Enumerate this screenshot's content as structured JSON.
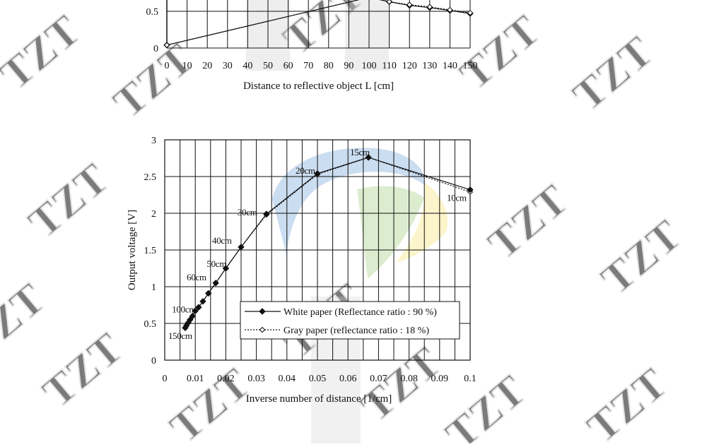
{
  "watermark": {
    "text": "TZT",
    "colors": {
      "blue": "#2f78c4",
      "green": "#74b83e",
      "yellow": "#f2d22a",
      "gray": "#cfcfcf"
    }
  },
  "chart_data": [
    {
      "type": "line",
      "partial": true,
      "xlabel": "Distance to reflective object L [cm]",
      "ylabel": "",
      "x_ticks": [
        "0",
        "10",
        "20",
        "30",
        "40",
        "50",
        "60",
        "70",
        "80",
        "90",
        "100",
        "110",
        "120",
        "130",
        "140",
        "150"
      ],
      "y_ticks": [
        "0",
        "0.5"
      ],
      "xlim": [
        0,
        150
      ],
      "grid": true,
      "series": [
        {
          "style": "solid-diamond",
          "x": [
            0,
            100,
            110,
            120,
            130,
            140,
            150
          ],
          "y": [
            0.04,
            0.69,
            0.63,
            0.58,
            0.55,
            0.51,
            0.47
          ]
        },
        {
          "style": "dotted-open-diamond",
          "x": [
            0,
            100,
            110,
            120,
            130,
            140,
            150
          ],
          "y": [
            0.04,
            0.69,
            0.63,
            0.59,
            0.56,
            0.52,
            0.48
          ]
        }
      ]
    },
    {
      "type": "line",
      "xlabel": "Inverse number of distance [1/cm]",
      "ylabel": "Output voltage [V]",
      "x_ticks": [
        "0",
        "0.01",
        "0.02",
        "0.03",
        "0.04",
        "0.05",
        "0.06",
        "0.07",
        "0.08",
        "0.09",
        "0.1"
      ],
      "y_ticks": [
        "0",
        "0.5",
        "1",
        "1.5",
        "2",
        "2.5",
        "3"
      ],
      "xlim": [
        0,
        0.1
      ],
      "ylim": [
        0,
        3
      ],
      "grid": true,
      "legend_position": "bottom-right",
      "series": [
        {
          "name": "White paper (Reflectance ratio : 90 %)",
          "style": "solid-diamond",
          "x": [
            0.1,
            0.0667,
            0.05,
            0.0333,
            0.025,
            0.02,
            0.0167,
            0.0143,
            0.0125,
            0.0111,
            0.01,
            0.0091,
            0.0083,
            0.0077,
            0.0071,
            0.0067
          ],
          "y": [
            2.32,
            2.76,
            2.54,
            1.99,
            1.54,
            1.25,
            1.05,
            0.91,
            0.8,
            0.72,
            0.67,
            0.6,
            0.55,
            0.51,
            0.47,
            0.44
          ]
        },
        {
          "name": "Gray paper (reflectance ratio : 18 %)",
          "style": "dotted-open-diamond",
          "x": [
            0.1,
            0.0667,
            0.05,
            0.0333,
            0.025,
            0.02,
            0.0167,
            0.0143,
            0.0125,
            0.0111,
            0.01,
            0.0091,
            0.0083,
            0.0077,
            0.0071,
            0.0067
          ],
          "y": [
            2.29,
            2.76,
            2.53,
            1.98,
            1.54,
            1.25,
            1.05,
            0.91,
            0.8,
            0.72,
            0.67,
            0.6,
            0.55,
            0.51,
            0.47,
            0.44
          ]
        }
      ],
      "annotations": [
        {
          "text": "15cm",
          "x": 0.0667,
          "y": 2.76
        },
        {
          "text": "20cm",
          "x": 0.05,
          "y": 2.54
        },
        {
          "text": "30cm",
          "x": 0.0333,
          "y": 1.99
        },
        {
          "text": "40cm",
          "x": 0.025,
          "y": 1.54
        },
        {
          "text": "50cm",
          "x": 0.02,
          "y": 1.25
        },
        {
          "text": "60cm",
          "x": 0.0167,
          "y": 1.05
        },
        {
          "text": "100cm",
          "x": 0.01,
          "y": 0.67
        },
        {
          "text": "150cm",
          "x": 0.0067,
          "y": 0.44
        },
        {
          "text": "10cm",
          "x": 0.1,
          "y": 2.32
        }
      ]
    }
  ]
}
